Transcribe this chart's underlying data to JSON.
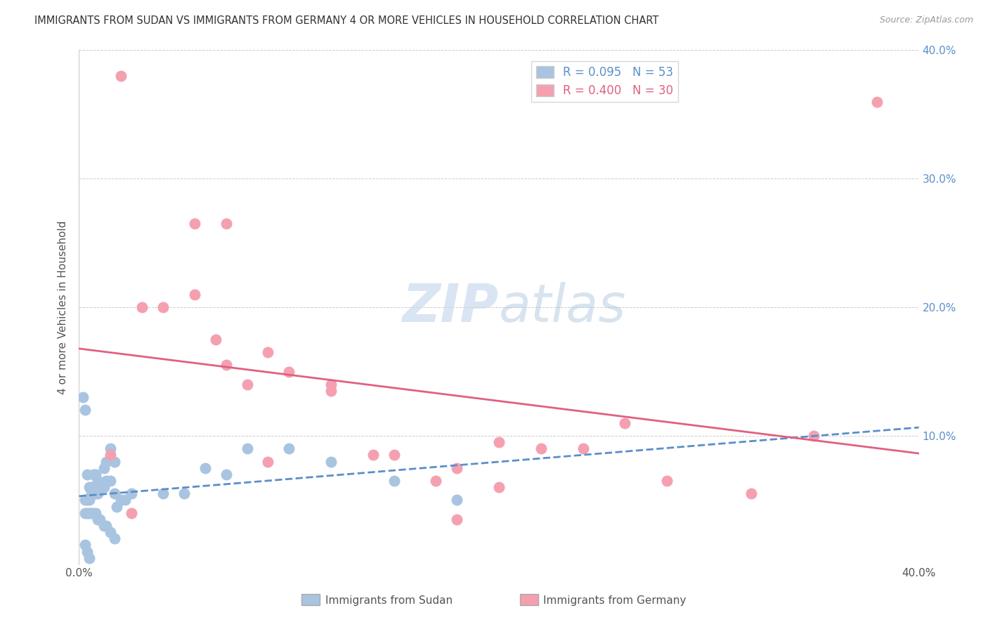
{
  "title": "IMMIGRANTS FROM SUDAN VS IMMIGRANTS FROM GERMANY 4 OR MORE VEHICLES IN HOUSEHOLD CORRELATION CHART",
  "source": "Source: ZipAtlas.com",
  "ylabel": "4 or more Vehicles in Household",
  "blue_R": 0.095,
  "blue_N": 53,
  "pink_R": 0.4,
  "pink_N": 30,
  "blue_color": "#a8c4e0",
  "pink_color": "#f4a0b0",
  "blue_line_color": "#5b8fc9",
  "pink_line_color": "#e06080",
  "watermark_zip": "ZIP",
  "watermark_atlas": "atlas",
  "blue_scatter_x": [
    0.002,
    0.003,
    0.004,
    0.005,
    0.006,
    0.007,
    0.008,
    0.009,
    0.01,
    0.012,
    0.013,
    0.015,
    0.017,
    0.018,
    0.02,
    0.022,
    0.025,
    0.003,
    0.004,
    0.005,
    0.006,
    0.007,
    0.008,
    0.009,
    0.01,
    0.012,
    0.013,
    0.015,
    0.017,
    0.003,
    0.004,
    0.005,
    0.006,
    0.007,
    0.008,
    0.009,
    0.01,
    0.012,
    0.013,
    0.015,
    0.017,
    0.04,
    0.05,
    0.06,
    0.07,
    0.08,
    0.1,
    0.12,
    0.15,
    0.18,
    0.003,
    0.004,
    0.005
  ],
  "blue_scatter_y": [
    0.13,
    0.12,
    0.07,
    0.06,
    0.055,
    0.055,
    0.055,
    0.055,
    0.06,
    0.06,
    0.065,
    0.065,
    0.055,
    0.045,
    0.05,
    0.05,
    0.055,
    0.05,
    0.05,
    0.05,
    0.06,
    0.07,
    0.07,
    0.065,
    0.06,
    0.075,
    0.08,
    0.09,
    0.08,
    0.04,
    0.04,
    0.04,
    0.04,
    0.04,
    0.04,
    0.035,
    0.035,
    0.03,
    0.03,
    0.025,
    0.02,
    0.055,
    0.055,
    0.075,
    0.07,
    0.09,
    0.09,
    0.08,
    0.065,
    0.05,
    0.015,
    0.01,
    0.005
  ],
  "pink_scatter_x": [
    0.02,
    0.03,
    0.04,
    0.055,
    0.065,
    0.07,
    0.08,
    0.09,
    0.1,
    0.12,
    0.14,
    0.15,
    0.17,
    0.18,
    0.2,
    0.22,
    0.24,
    0.26,
    0.28,
    0.32,
    0.35,
    0.38,
    0.055,
    0.07,
    0.09,
    0.12,
    0.015,
    0.025,
    0.18,
    0.2
  ],
  "pink_scatter_y": [
    0.38,
    0.2,
    0.2,
    0.21,
    0.175,
    0.155,
    0.14,
    0.08,
    0.15,
    0.14,
    0.085,
    0.085,
    0.065,
    0.075,
    0.095,
    0.09,
    0.09,
    0.11,
    0.065,
    0.055,
    0.1,
    0.36,
    0.265,
    0.265,
    0.165,
    0.135,
    0.085,
    0.04,
    0.035,
    0.06
  ]
}
